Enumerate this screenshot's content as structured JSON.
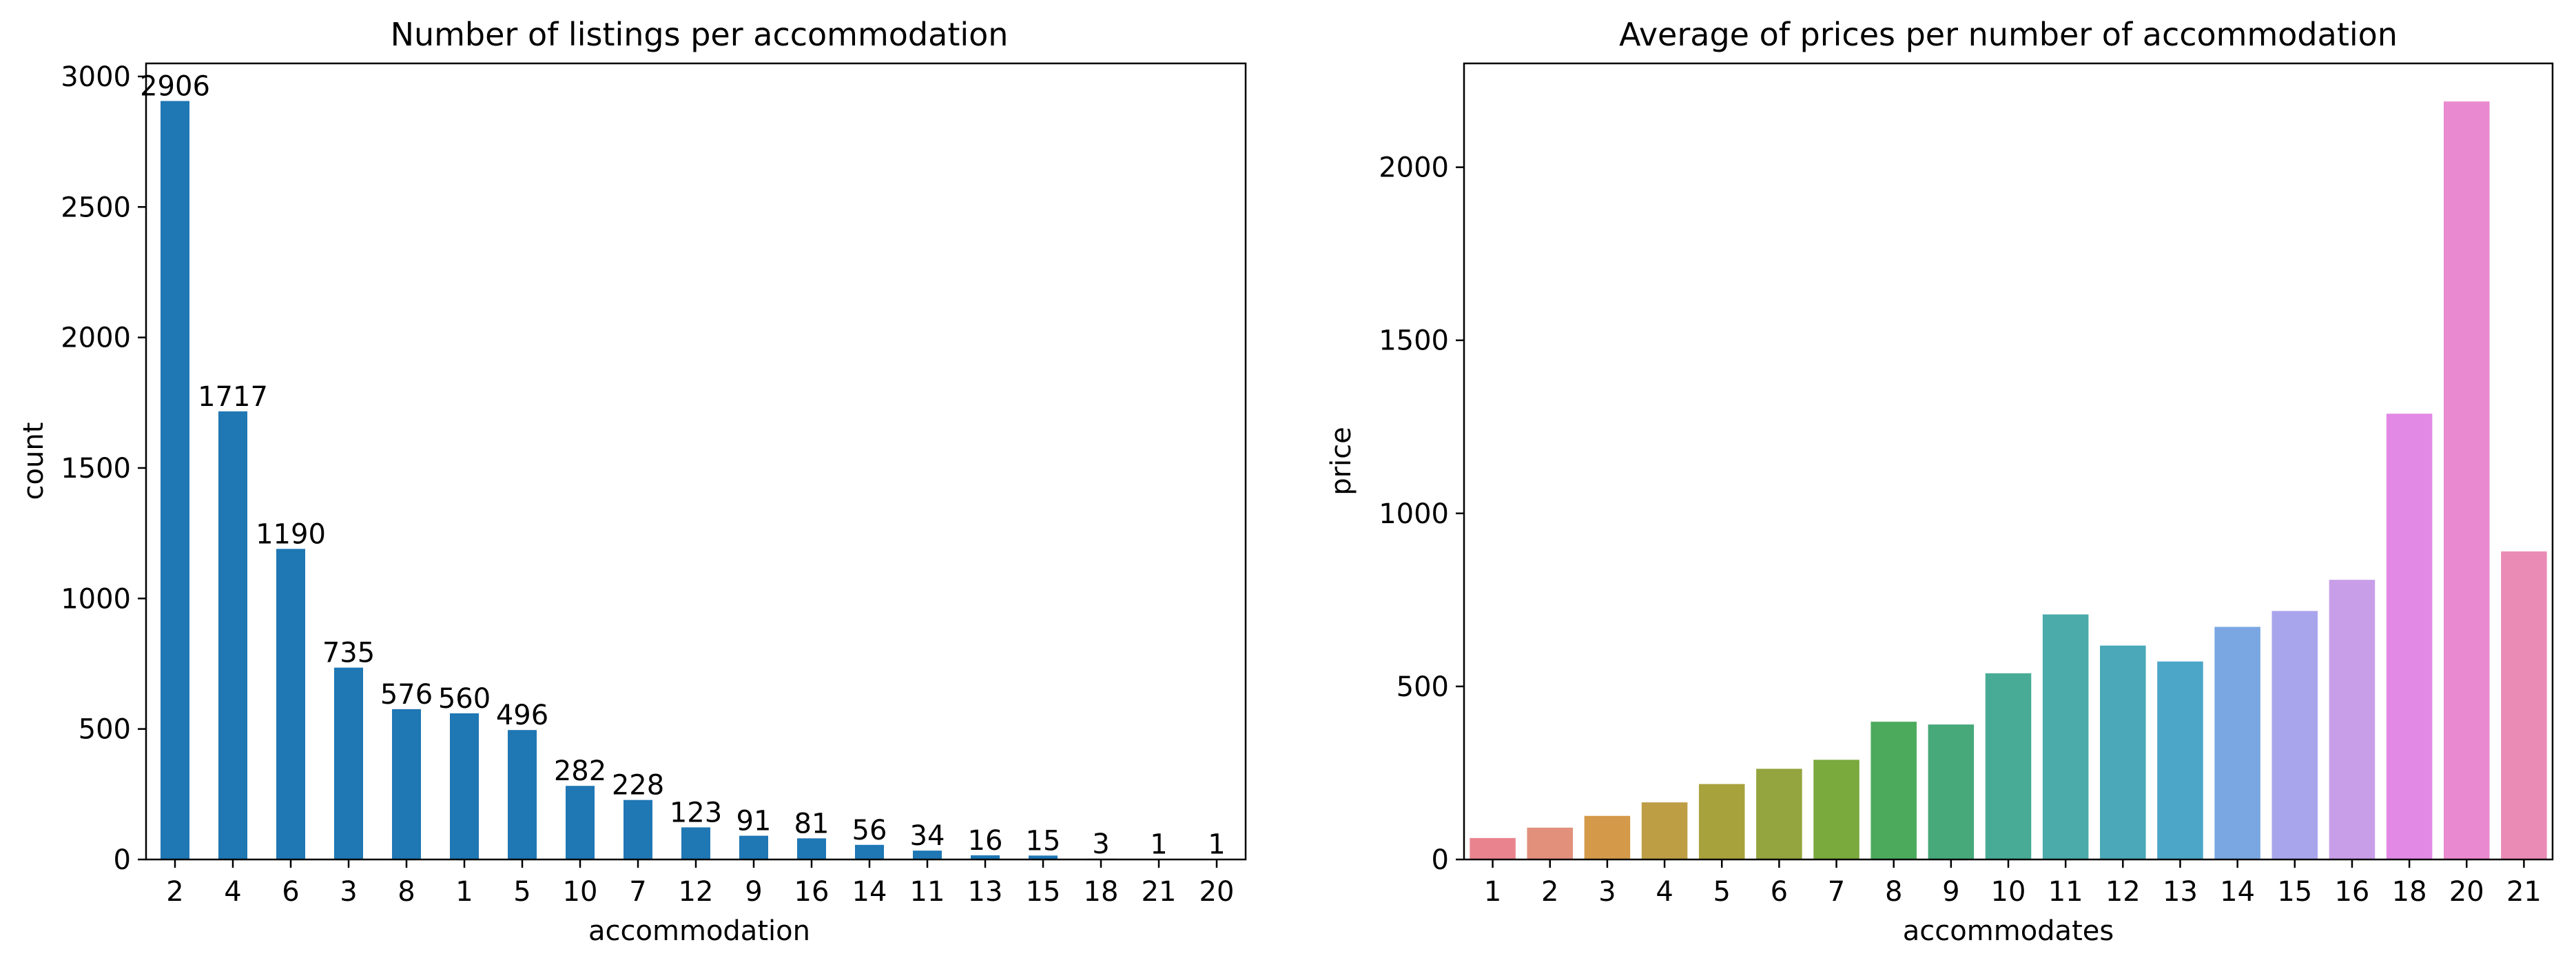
{
  "chart_data": [
    {
      "type": "bar",
      "title": "Number of listings per accommodation",
      "xlabel": "accommodation",
      "ylabel": "count",
      "ylim": [
        0,
        3050
      ],
      "yticks": [
        0,
        500,
        1000,
        1500,
        2000,
        2500,
        3000
      ],
      "categories": [
        "2",
        "4",
        "6",
        "3",
        "8",
        "1",
        "5",
        "10",
        "7",
        "12",
        "9",
        "16",
        "14",
        "11",
        "13",
        "15",
        "18",
        "21",
        "20"
      ],
      "values": [
        2906,
        1717,
        1190,
        735,
        576,
        560,
        496,
        282,
        228,
        123,
        91,
        81,
        56,
        34,
        16,
        15,
        3,
        1,
        1
      ],
      "data_labels": [
        "2906",
        "1717",
        "1190",
        "735",
        "576",
        "560",
        "496",
        "282",
        "228",
        "123",
        "91",
        "81",
        "56",
        "34",
        "16",
        "15",
        "3",
        "1",
        "1"
      ],
      "bar_color": "#1f77b4",
      "grid": false,
      "legend": "none"
    },
    {
      "type": "bar",
      "title": "Average of prices per number of accommodation",
      "xlabel": "accommodates",
      "ylabel": "price",
      "ylim": [
        0,
        2300
      ],
      "yticks": [
        0,
        500,
        1000,
        1500,
        2000
      ],
      "categories": [
        "1",
        "2",
        "3",
        "4",
        "5",
        "6",
        "7",
        "8",
        "9",
        "10",
        "11",
        "12",
        "13",
        "14",
        "15",
        "16",
        "18",
        "20",
        "21"
      ],
      "values": [
        62,
        92,
        126,
        165,
        218,
        262,
        288,
        398,
        390,
        538,
        708,
        618,
        572,
        672,
        718,
        808,
        1288,
        2190,
        890
      ],
      "colors": [
        "#e9848f",
        "#e2907c",
        "#d49a4a",
        "#be9e45",
        "#a8a23c",
        "#94a43e",
        "#7aa93e",
        "#4baa5c",
        "#47a97a",
        "#48ab95",
        "#4aabaa",
        "#4aa8b8",
        "#4ba6c8",
        "#7aa7e2",
        "#a9a5ec",
        "#c89ee9",
        "#e289e6",
        "#e989cf",
        "#ea8bb5"
      ],
      "grid": false,
      "legend": "none"
    }
  ]
}
